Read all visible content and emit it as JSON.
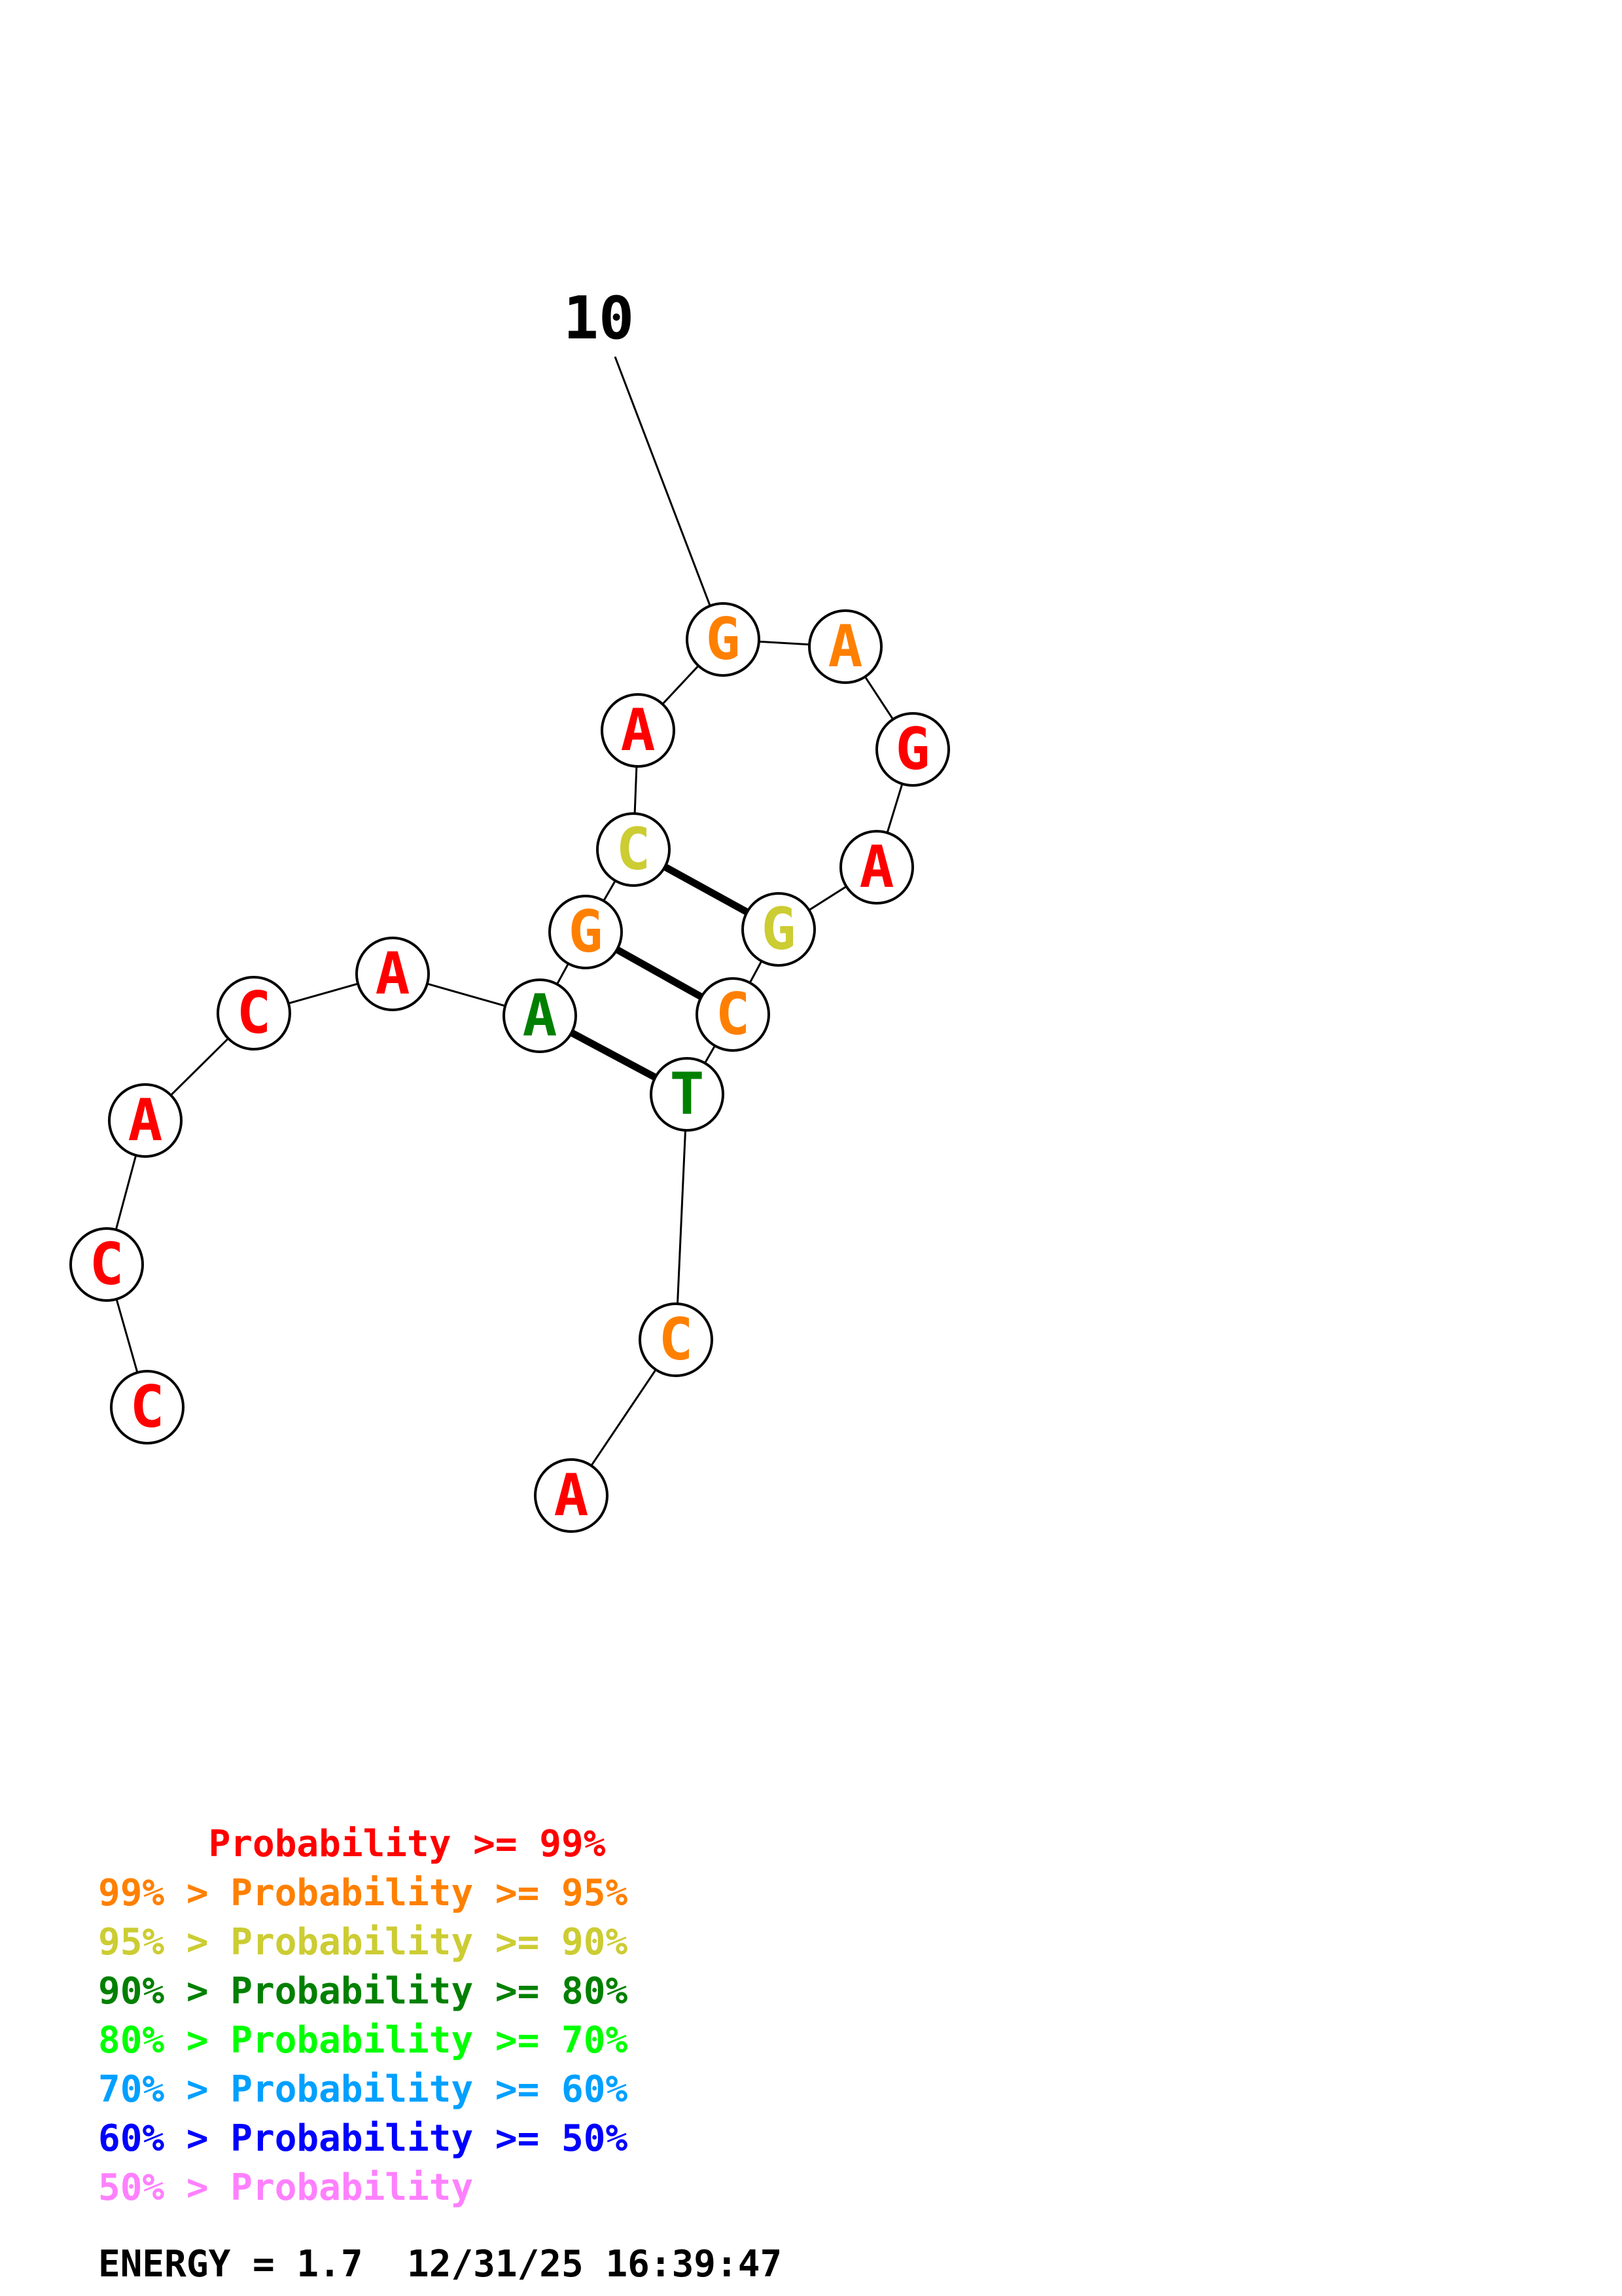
{
  "structure": {
    "number_label": "10",
    "nucleotides": [
      {
        "base": "C",
        "color": "#ff0000"
      },
      {
        "base": "C",
        "color": "#ff0000"
      },
      {
        "base": "A",
        "color": "#ff0000"
      },
      {
        "base": "C",
        "color": "#ff0000"
      },
      {
        "base": "A",
        "color": "#ff0000"
      },
      {
        "base": "A",
        "color": "#008000"
      },
      {
        "base": "G",
        "color": "#ff8000"
      },
      {
        "base": "C",
        "color": "#cccc33"
      },
      {
        "base": "A",
        "color": "#ff0000"
      },
      {
        "base": "G",
        "color": "#ff8000"
      },
      {
        "base": "A",
        "color": "#ff8000"
      },
      {
        "base": "G",
        "color": "#ff0000"
      },
      {
        "base": "A",
        "color": "#ff0000"
      },
      {
        "base": "G",
        "color": "#cccc33"
      },
      {
        "base": "C",
        "color": "#ff8000"
      },
      {
        "base": "T",
        "color": "#008000"
      },
      {
        "base": "C",
        "color": "#ff8000"
      },
      {
        "base": "A",
        "color": "#ff0000"
      }
    ],
    "base_pairs": [
      [
        6,
        16
      ],
      [
        7,
        15
      ],
      [
        8,
        14
      ]
    ]
  },
  "legend": [
    {
      "text": "     Probability >= 99%",
      "color": "#ff0000"
    },
    {
      "text": "99% > Probability >= 95%",
      "color": "#ff8000"
    },
    {
      "text": "95% > Probability >= 90%",
      "color": "#cccc33"
    },
    {
      "text": "90% > Probability >= 80%",
      "color": "#008000"
    },
    {
      "text": "80% > Probability >= 70%",
      "color": "#00ff00"
    },
    {
      "text": "70% > Probability >= 60%",
      "color": "#00a0ff"
    },
    {
      "text": "60% > Probability >= 50%",
      "color": "#0000ff"
    },
    {
      "text": "50% > Probability",
      "color": "#ff80ff"
    }
  ],
  "energy_text": "ENERGY = 1.7  12/31/25 16:39:47"
}
